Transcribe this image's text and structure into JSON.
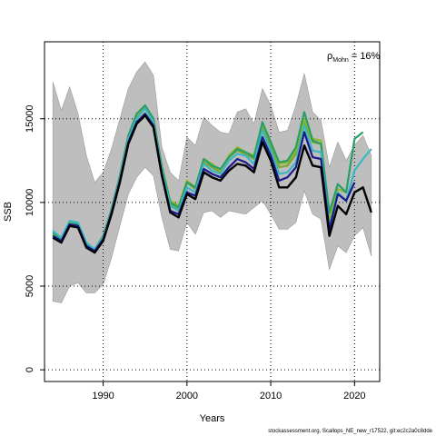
{
  "chart_data": {
    "type": "line",
    "xlabel": "Years",
    "ylabel": "SSB",
    "xlim": [
      1983,
      2023
    ],
    "ylim": [
      -700,
      19600
    ],
    "x_ticks": [
      1990,
      2000,
      2010,
      2020
    ],
    "y_ticks": [
      0,
      5000,
      10000,
      15000
    ],
    "grid": true,
    "annotation": {
      "symbol": "ρ",
      "subscript": "Mohn",
      "text": " = 16%"
    },
    "colors": {
      "band": "#bebebe",
      "gridline": "#000000",
      "median": "#000000",
      "peels": [
        "#1a1a8f",
        "#3cb8c4",
        "#2a9e68",
        "#8fb82a",
        "#78a830"
      ]
    },
    "confidence_band": {
      "x": [
        1984,
        1985,
        1986,
        1987,
        1988,
        1989,
        1990,
        1991,
        1992,
        1993,
        1994,
        1995,
        1996,
        1997,
        1998,
        1999,
        2000,
        2001,
        2002,
        2003,
        2004,
        2005,
        2006,
        2007,
        2008,
        2009,
        2010,
        2011,
        2012,
        2013,
        2014,
        2015,
        2016,
        2017,
        2018,
        2019,
        2020,
        2021,
        2022
      ],
      "upper": [
        17200,
        15500,
        16900,
        15300,
        12800,
        11200,
        11800,
        13200,
        15000,
        16800,
        17800,
        18400,
        17600,
        13300,
        11800,
        11300,
        13900,
        13400,
        15100,
        14600,
        14200,
        14100,
        15400,
        15600,
        14700,
        16800,
        15800,
        14200,
        14300,
        15800,
        17700,
        15400,
        14900,
        12100,
        13600,
        12500,
        13400,
        14000,
        12800
      ],
      "lower": [
        4100,
        4000,
        5000,
        5200,
        4600,
        4600,
        5100,
        6700,
        8600,
        10500,
        11500,
        12100,
        11600,
        9100,
        7200,
        7100,
        8800,
        8100,
        9400,
        9500,
        9100,
        9500,
        9400,
        9300,
        9700,
        10100,
        9300,
        8400,
        8400,
        8800,
        10700,
        9300,
        9000,
        6000,
        7400,
        7000,
        8000,
        8500,
        6800
      ]
    },
    "series": [
      {
        "values": [
          7900,
          7600,
          8600,
          8500,
          7300,
          7000,
          7700,
          9300,
          11200,
          13500,
          14700,
          15200,
          14500,
          11600,
          9400,
          9100,
          10500,
          10200,
          11800,
          11500,
          11300,
          11900,
          12300,
          12200,
          11800,
          13600,
          12500,
          10900,
          10900,
          11500,
          13400,
          12200,
          12100,
          8000,
          9800,
          9300,
          10600,
          10900,
          9400
        ]
      },
      {
        "values": [
          8000,
          7700,
          8700,
          8600,
          7400,
          7100,
          7800,
          9400,
          11300,
          13600,
          14800,
          15300,
          14600,
          11700,
          9500,
          9300,
          10600,
          10400,
          12000,
          11700,
          11500,
          12100,
          12600,
          12400,
          12000,
          13900,
          12800,
          11300,
          11500,
          12100,
          14200,
          12700,
          12600,
          8400,
          10500,
          10100,
          11200
        ]
      },
      {
        "values": [
          8300,
          7900,
          8900,
          8800,
          7600,
          7200,
          7900,
          9500,
          11400,
          13800,
          15000,
          15600,
          14800,
          11900,
          9800,
          9500,
          10900,
          10600,
          12300,
          11900,
          11700,
          12500,
          12900,
          12800,
          12300,
          14300,
          13100,
          11700,
          11800,
          12400,
          14600,
          13100,
          13000,
          8500,
          10600,
          10100,
          11900,
          12600,
          13200
        ]
      },
      {
        "values": [
          8200,
          7800,
          8900,
          8700,
          7500,
          7200,
          8000,
          9600,
          11600,
          14000,
          15300,
          15800,
          15000,
          12100,
          10000,
          9700,
          11200,
          10900,
          12600,
          12200,
          12000,
          12700,
          13200,
          13000,
          12700,
          14800,
          13600,
          12400,
          12500,
          13300,
          15400,
          13700,
          13500,
          9400,
          11100,
          10600,
          13800,
          14200
        ]
      },
      {
        "values": [
          8200,
          7800,
          8800,
          8700,
          7500,
          7100,
          7900,
          9600,
          11500,
          14000,
          15200,
          15800,
          15000,
          12200,
          10100,
          9800,
          11300,
          10900,
          12600,
          12300,
          11900,
          12800,
          13300,
          13000,
          12800,
          14700,
          13600,
          12300,
          12400,
          13100,
          15000,
          13800,
          13700,
          9000,
          10800,
          10600
        ]
      },
      {
        "values": [
          8100,
          7700,
          8700,
          8600,
          7400,
          7100,
          7900,
          9500,
          11400,
          13800,
          15100,
          15700,
          14900,
          12000,
          9900,
          9600,
          11200,
          10800,
          12400,
          12100,
          11800,
          12700,
          13100,
          12900,
          12600,
          14500,
          13400,
          12100,
          12200,
          12900,
          14800,
          13600,
          13500,
          8800
        ]
      }
    ]
  },
  "footer": "stockassessment.org, Scallops_NE_new_r17522, git:ec2c2a0c8dde"
}
